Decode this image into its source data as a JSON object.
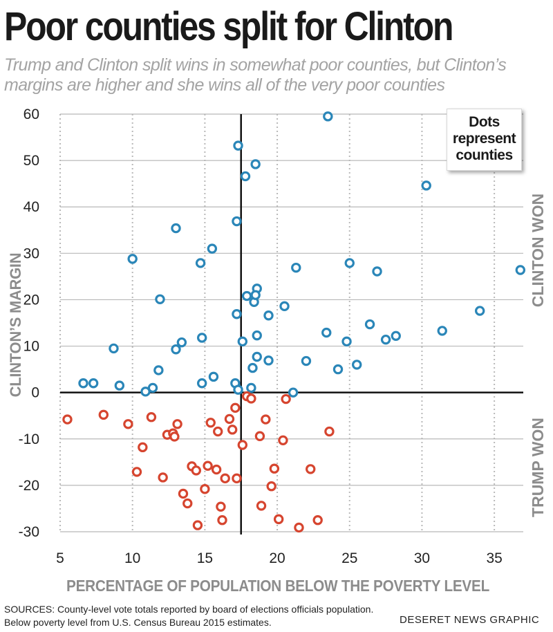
{
  "header": {
    "title": "Poor counties split for Clinton",
    "subtitle": "Trump and Clinton split wins in somewhat poor counties, but Clinton’s margins are higher and she wins all of the very poor counties"
  },
  "legend": {
    "line1": "Dots",
    "line2": "represent",
    "line3": "counties"
  },
  "regions": {
    "clinton": "CLINTON WON",
    "trump": "TRUMP WON"
  },
  "footer": {
    "sources_line1": "SOURCES: County-level vote totals reported by board of elections officials population.",
    "sources_line2": "Below poverty level from U.S. Census Bureau 2015 estimates.",
    "credit": "DESERET NEWS GRAPHIC"
  },
  "colors": {
    "clinton": "#2a86b8",
    "trump": "#d6452f",
    "grid": "#b8b8b8",
    "axis": "#111111"
  },
  "chart_data": {
    "type": "scatter",
    "title": "Poor counties split for Clinton",
    "xlabel": "PERCENTAGE OF POPULATION BELOW THE POVERTY LEVEL",
    "ylabel": "CLINTON’S MARGIN",
    "xlim": [
      5,
      37
    ],
    "ylim": [
      -30,
      60
    ],
    "xticks": [
      5,
      10,
      15,
      20,
      25,
      30,
      35
    ],
    "yticks": [
      60,
      50,
      40,
      30,
      20,
      10,
      0,
      -10,
      -20,
      -30
    ],
    "grid": true,
    "reference_lines": {
      "x": 17.5,
      "y": 0
    },
    "series": [
      {
        "name": "Clinton won",
        "points": [
          [
            6.6,
            2.0
          ],
          [
            7.3,
            2.0
          ],
          [
            8.7,
            9.5
          ],
          [
            9.1,
            1.5
          ],
          [
            10.0,
            28.8
          ],
          [
            10.9,
            0.2
          ],
          [
            11.4,
            1.0
          ],
          [
            11.8,
            4.8
          ],
          [
            11.9,
            20.1
          ],
          [
            13.0,
            9.3
          ],
          [
            13.0,
            35.4
          ],
          [
            13.4,
            10.8
          ],
          [
            14.7,
            27.9
          ],
          [
            14.8,
            11.8
          ],
          [
            14.8,
            2.0
          ],
          [
            15.5,
            31.0
          ],
          [
            15.6,
            3.4
          ],
          [
            17.1,
            2.0
          ],
          [
            17.2,
            36.9
          ],
          [
            17.3,
            53.2
          ],
          [
            17.2,
            16.9
          ],
          [
            17.3,
            0.6
          ],
          [
            17.6,
            11.0
          ],
          [
            17.8,
            46.6
          ],
          [
            17.9,
            20.8
          ],
          [
            18.3,
            5.3
          ],
          [
            18.4,
            19.5
          ],
          [
            18.5,
            49.2
          ],
          [
            18.6,
            22.4
          ],
          [
            18.5,
            21.0
          ],
          [
            18.6,
            12.3
          ],
          [
            18.6,
            7.7
          ],
          [
            18.2,
            1.0
          ],
          [
            19.4,
            16.6
          ],
          [
            19.4,
            6.9
          ],
          [
            20.5,
            18.6
          ],
          [
            21.1,
            0.0
          ],
          [
            21.3,
            26.9
          ],
          [
            22.0,
            6.8
          ],
          [
            23.4,
            12.9
          ],
          [
            23.5,
            59.5
          ],
          [
            24.2,
            5.0
          ],
          [
            24.8,
            11.0
          ],
          [
            25.0,
            27.9
          ],
          [
            25.5,
            6.0
          ],
          [
            26.4,
            14.7
          ],
          [
            26.9,
            26.1
          ],
          [
            27.5,
            11.4
          ],
          [
            28.2,
            12.2
          ],
          [
            30.3,
            44.6
          ],
          [
            31.4,
            13.3
          ],
          [
            34.0,
            17.6
          ],
          [
            36.8,
            26.4
          ]
        ]
      },
      {
        "name": "Trump won",
        "points": [
          [
            5.5,
            -5.8
          ],
          [
            8.0,
            -4.8
          ],
          [
            9.7,
            -6.8
          ],
          [
            10.3,
            -17.1
          ],
          [
            10.7,
            -11.8
          ],
          [
            11.3,
            -5.3
          ],
          [
            12.1,
            -18.3
          ],
          [
            12.4,
            -9.1
          ],
          [
            12.8,
            -8.8
          ],
          [
            12.9,
            -9.5
          ],
          [
            13.1,
            -6.8
          ],
          [
            13.5,
            -21.8
          ],
          [
            13.8,
            -23.9
          ],
          [
            14.1,
            -15.9
          ],
          [
            14.4,
            -16.8
          ],
          [
            14.5,
            -28.6
          ],
          [
            15.0,
            -20.8
          ],
          [
            15.2,
            -15.8
          ],
          [
            15.4,
            -6.5
          ],
          [
            15.8,
            -16.6
          ],
          [
            15.9,
            -8.4
          ],
          [
            16.1,
            -24.6
          ],
          [
            16.2,
            -27.5
          ],
          [
            16.4,
            -18.5
          ],
          [
            16.7,
            -5.7
          ],
          [
            16.9,
            -8.0
          ],
          [
            17.1,
            -3.3
          ],
          [
            17.2,
            -18.5
          ],
          [
            17.6,
            -11.3
          ],
          [
            17.9,
            -0.8
          ],
          [
            18.2,
            -1.3
          ],
          [
            18.8,
            -9.4
          ],
          [
            18.9,
            -24.4
          ],
          [
            19.2,
            -5.8
          ],
          [
            19.6,
            -20.2
          ],
          [
            19.8,
            -16.4
          ],
          [
            20.1,
            -27.3
          ],
          [
            20.4,
            -10.3
          ],
          [
            20.6,
            -1.4
          ],
          [
            21.5,
            -29.1
          ],
          [
            22.3,
            -16.5
          ],
          [
            22.8,
            -27.5
          ],
          [
            23.6,
            -8.4
          ]
        ]
      }
    ]
  }
}
